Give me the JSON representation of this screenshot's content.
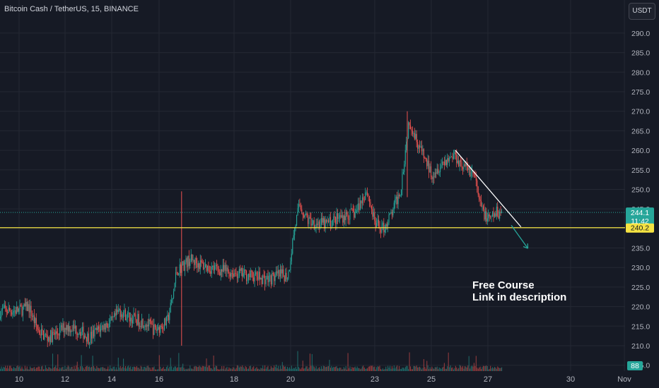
{
  "header": {
    "symbol_title": "Bitcoin Cash / TetherUS, 15, BINANCE",
    "currency_button": "USDT"
  },
  "annotation": {
    "line1": "Free Course",
    "line2": "Link in description"
  },
  "colors": {
    "background": "#161a25",
    "up": "#26a69a",
    "down": "#ef5350",
    "support_line": "#f5e342",
    "trendline": "#ffffff",
    "arrow": "#26a69a"
  },
  "chart_data": {
    "type": "candlestick",
    "y_axis": {
      "ticks": [
        "290.0",
        "285.0",
        "280.0",
        "275.0",
        "270.0",
        "265.0",
        "260.0",
        "255.0",
        "250.0",
        "245.0",
        "240.0",
        "235.0",
        "230.0",
        "225.0",
        "220.0",
        "215.0",
        "210.0",
        "205.0"
      ],
      "ylim": [
        203.5,
        294.5
      ]
    },
    "x_axis": {
      "ticks": [
        "10",
        "12",
        "14",
        "16",
        "18",
        "20",
        "23",
        "25",
        "27",
        "30",
        "Nov"
      ]
    },
    "price_path": [
      [
        10,
        219
      ],
      [
        10.4,
        220
      ],
      [
        10.8,
        214
      ],
      [
        11.2,
        212
      ],
      [
        11.6,
        213
      ],
      [
        12.0,
        215
      ],
      [
        12.6,
        214
      ],
      [
        13.0,
        212
      ],
      [
        13.6,
        215
      ],
      [
        14.0,
        216
      ],
      [
        14.3,
        219
      ],
      [
        14.8,
        217
      ],
      [
        15.4,
        216
      ],
      [
        15.8,
        214
      ],
      [
        16.2,
        216
      ],
      [
        16.35,
        222
      ],
      [
        16.45,
        229
      ],
      [
        16.8,
        232
      ],
      [
        17.3,
        230
      ],
      [
        17.8,
        229
      ],
      [
        18.5,
        228
      ],
      [
        19.2,
        227
      ],
      [
        19.6,
        228
      ],
      [
        19.9,
        228
      ],
      [
        20.1,
        239
      ],
      [
        20.3,
        246
      ],
      [
        20.6,
        242
      ],
      [
        21.2,
        241
      ],
      [
        21.8,
        243
      ],
      [
        22.3,
        244
      ],
      [
        22.7,
        250
      ],
      [
        23.0,
        241
      ],
      [
        23.3,
        240
      ],
      [
        23.6,
        244
      ],
      [
        23.9,
        250
      ],
      [
        24.2,
        268
      ],
      [
        24.5,
        262
      ],
      [
        24.8,
        257
      ],
      [
        25.0,
        254
      ],
      [
        25.4,
        257
      ],
      [
        25.8,
        259
      ],
      [
        26.1,
        256
      ],
      [
        26.5,
        254
      ],
      [
        26.7,
        246
      ],
      [
        27.0,
        242
      ],
      [
        27.3,
        244
      ],
      [
        27.5,
        244.1
      ]
    ],
    "current_price": {
      "label": "244.1",
      "countdown": "11:42"
    },
    "support_level": {
      "value": 240.2,
      "label": "240.2"
    },
    "trendline": {
      "from": [
        25.85,
        260.0
      ],
      "to": [
        28.2,
        240.4
      ]
    },
    "projection_arrow": {
      "from": [
        27.85,
        240.8
      ],
      "to": [
        28.45,
        234.9
      ]
    },
    "volume": {
      "current_label": "88"
    }
  }
}
